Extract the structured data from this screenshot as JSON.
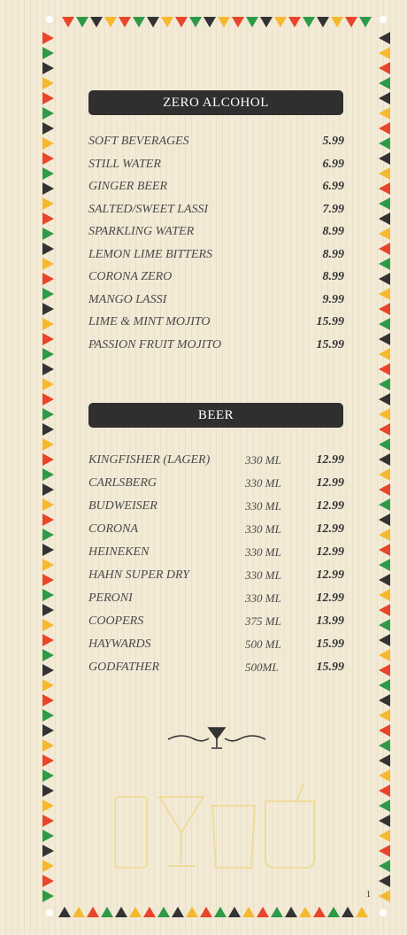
{
  "sections": [
    {
      "title": "ZERO ALCOHOL",
      "items": [
        {
          "name": "SOFT BEVERAGES",
          "price": "5.99"
        },
        {
          "name": "STILL WATER",
          "price": "6.99"
        },
        {
          "name": "GINGER BEER",
          "price": "6.99"
        },
        {
          "name": "SALTED/SWEET LASSI",
          "price": "7.99"
        },
        {
          "name": "SPARKLING WATER",
          "price": "8.99"
        },
        {
          "name": "LEMON LIME BITTERS",
          "price": "8.99"
        },
        {
          "name": "CORONA ZERO",
          "price": "8.99"
        },
        {
          "name": "MANGO LASSI",
          "price": "9.99"
        },
        {
          "name": "LIME & MINT MOJITO",
          "price": "15.99"
        },
        {
          "name": "PASSION FRUIT MOJITO",
          "price": "15.99"
        }
      ]
    },
    {
      "title": "BEER",
      "items": [
        {
          "name": "KINGFISHER (LAGER)",
          "volume": "330 ML",
          "price": "12.99"
        },
        {
          "name": "CARLSBERG",
          "volume": "330 ML",
          "price": "12.99"
        },
        {
          "name": "BUDWEISER",
          "volume": "330 ML",
          "price": "12.99"
        },
        {
          "name": "CORONA",
          "volume": "330 ML",
          "price": "12.99"
        },
        {
          "name": "HEINEKEN",
          "volume": "330 ML",
          "price": "12.99"
        },
        {
          "name": "HAHN SUPER DRY",
          "volume": "330 ML",
          "price": "12.99"
        },
        {
          "name": "PERONI",
          "volume": "330 ML",
          "price": "12.99"
        },
        {
          "name": "COOPERS",
          "volume": "375 ML",
          "price": "13.99"
        },
        {
          "name": "HAYWARDS",
          "volume": "500 ML",
          "price": "15.99"
        },
        {
          "name": "GODFATHER",
          "volume": "500ML",
          "price": "15.99"
        }
      ]
    }
  ],
  "page_number": "1"
}
